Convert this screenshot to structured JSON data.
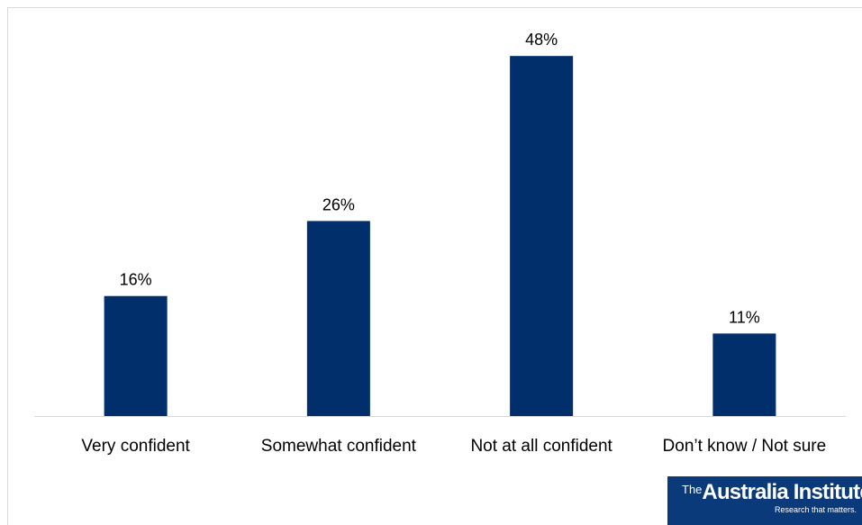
{
  "chart_data": {
    "type": "bar",
    "categories": [
      "Very confident",
      "Somewhat confident",
      "Not at all confident",
      "Don’t know / Not sure"
    ],
    "values": [
      16,
      26,
      48,
      11
    ],
    "value_labels": [
      "16%",
      "26%",
      "48%",
      "11%"
    ],
    "title": "",
    "xlabel": "",
    "ylabel": "",
    "ylim": [
      0,
      50
    ],
    "grid": false,
    "legend": "none",
    "bar_color": "#002f6c"
  },
  "logo": {
    "the": "The",
    "name": "Australia Institute",
    "tagline": "Research that matters."
  }
}
